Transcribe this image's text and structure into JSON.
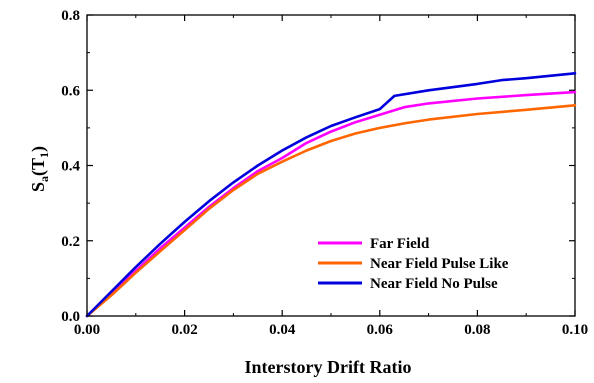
{
  "chart_data": {
    "type": "line",
    "xlabel": "Interstory Drift Ratio",
    "ylabel": {
      "main": "S",
      "sub_a": "a",
      "paren_open": "(T",
      "sub_1": "1",
      "paren_close": ")"
    },
    "xlim": [
      0.0,
      0.1
    ],
    "ylim": [
      0.0,
      0.8
    ],
    "xticks": [
      "0.00",
      "0.02",
      "0.04",
      "0.06",
      "0.08",
      "0.10"
    ],
    "xtick_values": [
      0.0,
      0.02,
      0.04,
      0.06,
      0.08,
      0.1
    ],
    "yticks": [
      "0.0",
      "0.2",
      "0.4",
      "0.6",
      "0.8"
    ],
    "ytick_values": [
      0.0,
      0.2,
      0.4,
      0.6,
      0.8
    ],
    "grid": false,
    "legend_position": "bottom-right",
    "series": [
      {
        "name": "Far Field",
        "color": "#ff00ff",
        "x": [
          0.0,
          0.005,
          0.01,
          0.015,
          0.02,
          0.025,
          0.03,
          0.035,
          0.04,
          0.045,
          0.05,
          0.055,
          0.06,
          0.065,
          0.07,
          0.08,
          0.09,
          0.1
        ],
        "y": [
          0.0,
          0.058,
          0.12,
          0.18,
          0.235,
          0.29,
          0.34,
          0.385,
          0.42,
          0.46,
          0.49,
          0.515,
          0.535,
          0.555,
          0.565,
          0.578,
          0.587,
          0.595
        ]
      },
      {
        "name": "Near Field Pulse Like",
        "color": "#ff6600",
        "x": [
          0.0,
          0.005,
          0.01,
          0.015,
          0.02,
          0.025,
          0.03,
          0.035,
          0.04,
          0.045,
          0.05,
          0.055,
          0.06,
          0.065,
          0.07,
          0.08,
          0.09,
          0.1
        ],
        "y": [
          0.0,
          0.055,
          0.115,
          0.172,
          0.228,
          0.285,
          0.335,
          0.378,
          0.41,
          0.44,
          0.465,
          0.485,
          0.5,
          0.512,
          0.522,
          0.537,
          0.548,
          0.56
        ]
      },
      {
        "name": "Near Field No Pulse",
        "color": "#0000dd",
        "x": [
          0.0,
          0.005,
          0.01,
          0.015,
          0.02,
          0.025,
          0.03,
          0.035,
          0.04,
          0.045,
          0.05,
          0.055,
          0.06,
          0.063,
          0.07,
          0.08,
          0.085,
          0.09,
          0.1
        ],
        "y": [
          0.0,
          0.065,
          0.13,
          0.192,
          0.25,
          0.305,
          0.355,
          0.4,
          0.44,
          0.475,
          0.505,
          0.528,
          0.55,
          0.585,
          0.6,
          0.617,
          0.627,
          0.632,
          0.645
        ]
      }
    ]
  }
}
